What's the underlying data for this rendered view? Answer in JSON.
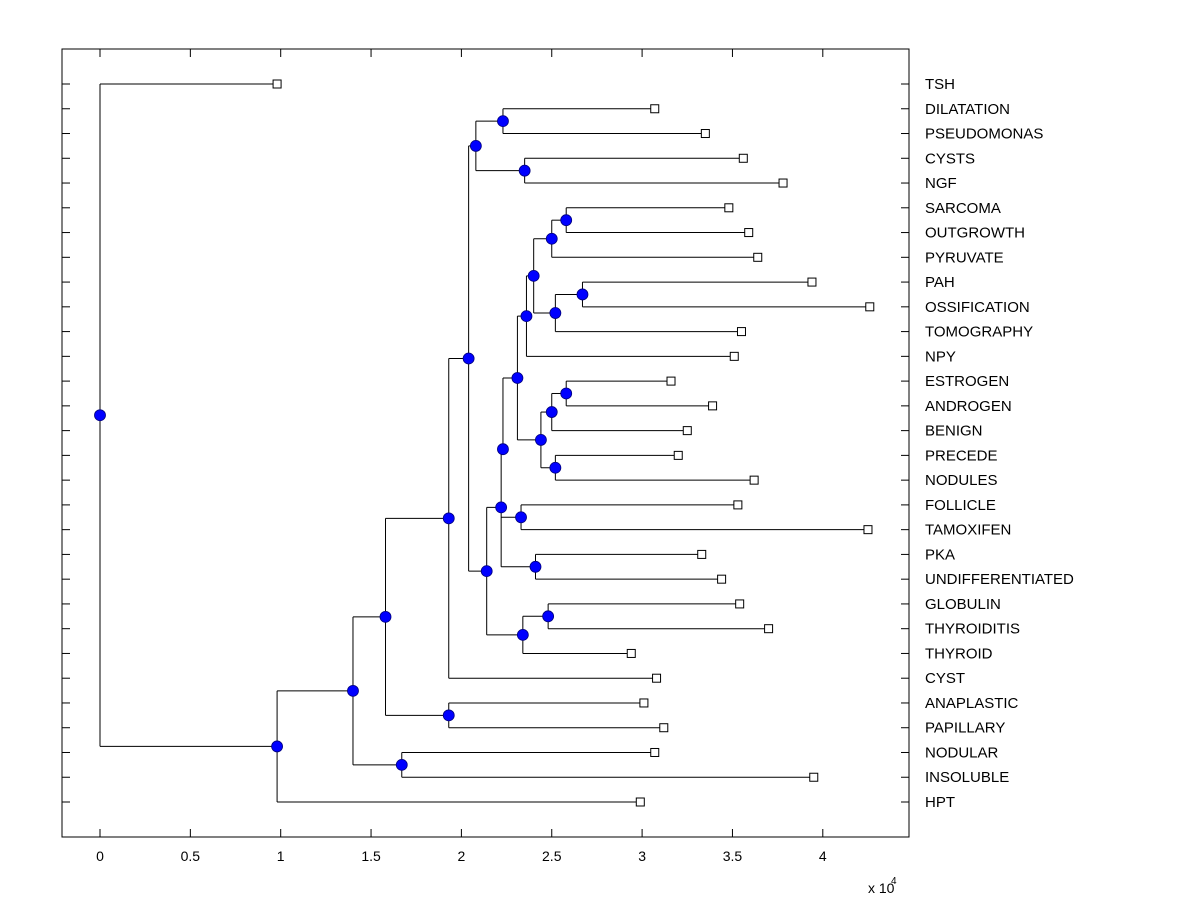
{
  "chart_data": {
    "type": "dendrogram",
    "title": "",
    "xlabel": "",
    "ylabel": "",
    "x_multiplier_label": "x 10",
    "x_multiplier_exponent": "4",
    "xlim": [
      -0.2,
      4.5
    ],
    "xticks": [
      0,
      0.5,
      1,
      1.5,
      2,
      2.5,
      3,
      3.5,
      4
    ],
    "xtick_labels": [
      "0",
      "0.5",
      "1",
      "1.5",
      "2",
      "2.5",
      "3",
      "3.5",
      "4"
    ],
    "grid": false,
    "colors": {
      "node_fill": "#0000ff",
      "node_edge": "#00007f",
      "line": "#000000",
      "leaf_fill": "#ffffff"
    },
    "leaves": [
      {
        "label": "TSH",
        "x": 0.98
      },
      {
        "label": "DILATATION",
        "x": 3.07
      },
      {
        "label": "PSEUDOMONAS",
        "x": 3.35
      },
      {
        "label": "CYSTS",
        "x": 3.56
      },
      {
        "label": "NGF",
        "x": 3.78
      },
      {
        "label": "SARCOMA",
        "x": 3.48
      },
      {
        "label": "OUTGROWTH",
        "x": 3.59
      },
      {
        "label": "PYRUVATE",
        "x": 3.64
      },
      {
        "label": "PAH",
        "x": 3.94
      },
      {
        "label": "OSSIFICATION",
        "x": 4.26
      },
      {
        "label": "TOMOGRAPHY",
        "x": 3.55
      },
      {
        "label": "NPY",
        "x": 3.51
      },
      {
        "label": "ESTROGEN",
        "x": 3.16
      },
      {
        "label": "ANDROGEN",
        "x": 3.39
      },
      {
        "label": "BENIGN",
        "x": 3.25
      },
      {
        "label": "PRECEDE",
        "x": 3.2
      },
      {
        "label": "NODULES",
        "x": 3.62
      },
      {
        "label": "FOLLICLE",
        "x": 3.53
      },
      {
        "label": "TAMOXIFEN",
        "x": 4.25
      },
      {
        "label": "PKA",
        "x": 3.33
      },
      {
        "label": "UNDIFFERENTIATED",
        "x": 3.44
      },
      {
        "label": "GLOBULIN",
        "x": 3.54
      },
      {
        "label": "THYROIDITIS",
        "x": 3.7
      },
      {
        "label": "THYROID",
        "x": 2.94
      },
      {
        "label": "CYST",
        "x": 3.08
      },
      {
        "label": "ANAPLASTIC",
        "x": 3.01
      },
      {
        "label": "PAPILLARY",
        "x": 3.12
      },
      {
        "label": "NODULAR",
        "x": 3.07
      },
      {
        "label": "INSOLUBLE",
        "x": 3.95
      },
      {
        "label": "HPT",
        "x": 2.99
      }
    ],
    "nodes": [
      {
        "id": "n_dp",
        "x": 2.23,
        "y": 1.5,
        "children": [
          "L1",
          "L2"
        ]
      },
      {
        "id": "n_cn",
        "x": 2.35,
        "y": 3.5,
        "children": [
          "L3",
          "L4"
        ]
      },
      {
        "id": "n_top",
        "x": 2.08,
        "y": 2.5,
        "children": [
          "n_dp",
          "n_cn"
        ]
      },
      {
        "id": "n_so",
        "x": 2.58,
        "y": 5.5,
        "children": [
          "L5",
          "L6"
        ]
      },
      {
        "id": "n_sop",
        "x": 2.5,
        "y": 6.25,
        "children": [
          "n_so",
          "L7"
        ]
      },
      {
        "id": "n_po",
        "x": 2.67,
        "y": 8.5,
        "children": [
          "L8",
          "L9"
        ]
      },
      {
        "id": "n_pot",
        "x": 2.52,
        "y": 9.25,
        "children": [
          "n_po",
          "L10"
        ]
      },
      {
        "id": "n_ab",
        "x": 2.4,
        "y": 7.75,
        "children": [
          "n_sop",
          "n_pot"
        ]
      },
      {
        "id": "n_abn",
        "x": 2.36,
        "y": 9.4,
        "children": [
          "n_ab",
          "L11"
        ]
      },
      {
        "id": "n_ea",
        "x": 2.58,
        "y": 12.5,
        "children": [
          "L12",
          "L13"
        ]
      },
      {
        "id": "n_eab",
        "x": 2.5,
        "y": 13.25,
        "children": [
          "n_ea",
          "L14"
        ]
      },
      {
        "id": "n_pn",
        "x": 2.52,
        "y": 15.5,
        "children": [
          "L15",
          "L16"
        ]
      },
      {
        "id": "n_eabpn",
        "x": 2.44,
        "y": 14.4,
        "children": [
          "n_eab",
          "n_pn"
        ]
      },
      {
        "id": "n_mid",
        "x": 2.31,
        "y": 11.9,
        "children": [
          "n_abn",
          "n_eabpn"
        ]
      },
      {
        "id": "n_mid2",
        "x": 2.23,
        "y": 14.75,
        "children": [
          "n_mid"
        ]
      },
      {
        "id": "n_ft",
        "x": 2.33,
        "y": 17.5,
        "children": [
          "L17",
          "L18"
        ]
      },
      {
        "id": "n_pu",
        "x": 2.41,
        "y": 19.5,
        "children": [
          "L19",
          "L20"
        ]
      },
      {
        "id": "n_fol",
        "x": 2.22,
        "y": 17.1,
        "children": [
          "n_mid2",
          "n_ft",
          "n_pu"
        ]
      },
      {
        "id": "n_gt",
        "x": 2.48,
        "y": 21.5,
        "children": [
          "L21",
          "L22"
        ]
      },
      {
        "id": "n_thy",
        "x": 2.34,
        "y": 22.25,
        "children": [
          "n_gt",
          "L23"
        ]
      },
      {
        "id": "n_big",
        "x": 2.14,
        "y": 19.7,
        "children": [
          "n_fol",
          "n_thy"
        ]
      },
      {
        "id": "n_upper",
        "x": 2.04,
        "y": 11.0,
        "children": [
          "n_top",
          "n_big"
        ]
      },
      {
        "id": "n_cyst",
        "x": 1.93,
        "y": 17.6,
        "children": [
          "n_upper",
          "L24"
        ]
      },
      {
        "id": "n_ap",
        "x": 1.93,
        "y": 25.5,
        "children": [
          "L25",
          "L26"
        ]
      },
      {
        "id": "n_c1",
        "x": 1.58,
        "y": 21.6,
        "children": [
          "n_cyst",
          "n_ap"
        ]
      },
      {
        "id": "n_ni",
        "x": 1.67,
        "y": 27.5,
        "children": [
          "L27",
          "L28"
        ]
      },
      {
        "id": "n_c2",
        "x": 1.4,
        "y": 24.6,
        "children": [
          "n_c1",
          "n_ni"
        ]
      },
      {
        "id": "n_c3",
        "x": 0.98,
        "y": 26.8,
        "children": [
          "n_c2",
          "L29"
        ]
      },
      {
        "id": "root",
        "x": 0.0,
        "y": 13.4,
        "children": [
          "L0",
          "n_c3"
        ]
      }
    ]
  }
}
